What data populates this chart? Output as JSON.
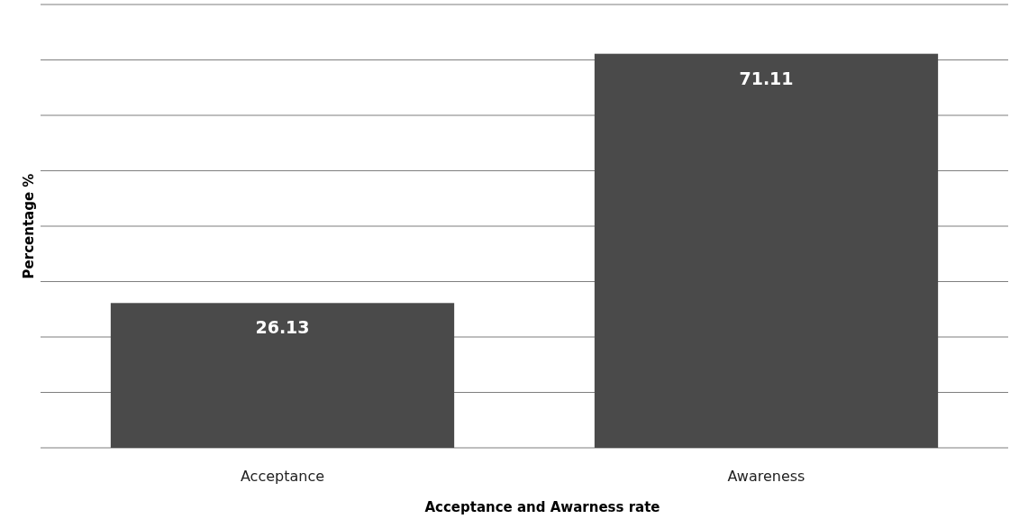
{
  "chart_data": {
    "type": "bar",
    "xlabel": "Acceptance and Awarness rate",
    "ylabel": "Percentage %",
    "categories": [
      "Acceptance",
      "Awareness"
    ],
    "values": [
      26.13,
      71.11
    ],
    "color": "#4a4a4a",
    "ylim": [
      0,
      80
    ],
    "yticks": [
      {
        "value": 0,
        "label": null
      },
      {
        "value": 10,
        "label": null
      },
      {
        "value": 20,
        "label": null
      },
      {
        "value": 30,
        "label": null
      },
      {
        "value": 40,
        "label": null
      },
      {
        "value": 50,
        "label": null
      },
      {
        "value": 60,
        "label": null
      },
      {
        "value": 70,
        "label": null
      },
      {
        "value": 80,
        "label": null
      }
    ],
    "grid": "y",
    "tick_labels": "x",
    "data_labels": true
  }
}
